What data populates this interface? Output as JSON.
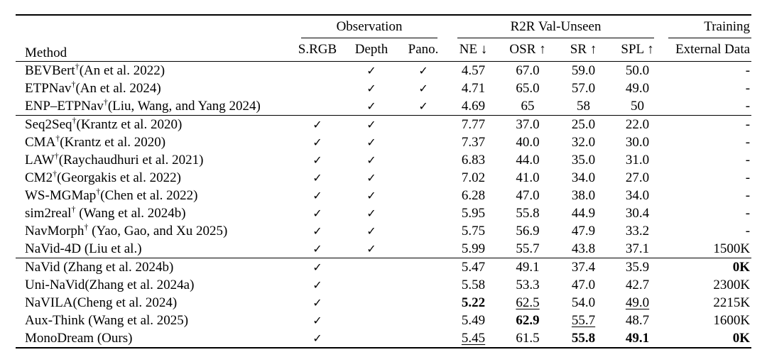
{
  "page": {
    "background": "#ffffff",
    "text_color": "#000000",
    "rule_color": "#000000"
  },
  "symbols": {
    "check": "✓",
    "dagger": "†"
  },
  "header": {
    "method": "Method",
    "groups": [
      {
        "label": "Observation",
        "span": 3
      },
      {
        "label": "R2R Val-Unseen",
        "span": 4
      },
      {
        "label": "Training",
        "span": 1
      }
    ],
    "sub": [
      "S.RGB",
      "Depth",
      "Pano.",
      "NE ↓",
      "OSR ↑",
      "SR ↑",
      "SPL ↑",
      "External Data"
    ]
  },
  "groups": [
    {
      "rows": [
        {
          "name": "BEVBert",
          "dagger": true,
          "cite": "(An et al. 2022)",
          "obs": [
            false,
            true,
            true
          ],
          "metrics": [
            {
              "t": "4.57"
            },
            {
              "t": "67.0"
            },
            {
              "t": "59.0"
            },
            {
              "t": "50.0"
            }
          ],
          "ext": {
            "t": "-"
          }
        },
        {
          "name": "ETPNav",
          "dagger": true,
          "cite": "(An et al. 2024)",
          "obs": [
            false,
            true,
            true
          ],
          "metrics": [
            {
              "t": "4.71"
            },
            {
              "t": "65.0"
            },
            {
              "t": "57.0"
            },
            {
              "t": "49.0"
            }
          ],
          "ext": {
            "t": "-"
          }
        },
        {
          "name": "ENP–ETPNav",
          "dagger": true,
          "cite": "(Liu, Wang, and Yang 2024)",
          "obs": [
            false,
            true,
            true
          ],
          "metrics": [
            {
              "t": "4.69"
            },
            {
              "t": "65"
            },
            {
              "t": "58"
            },
            {
              "t": "50"
            }
          ],
          "ext": {
            "t": "-"
          }
        }
      ]
    },
    {
      "rows": [
        {
          "name": "Seq2Seq",
          "dagger": true,
          "cite": "(Krantz et al. 2020)",
          "obs": [
            true,
            true,
            false
          ],
          "metrics": [
            {
              "t": "7.77"
            },
            {
              "t": "37.0"
            },
            {
              "t": "25.0"
            },
            {
              "t": "22.0"
            }
          ],
          "ext": {
            "t": "-"
          }
        },
        {
          "name": "CMA",
          "dagger": true,
          "cite": "(Krantz et al. 2020)",
          "obs": [
            true,
            true,
            false
          ],
          "metrics": [
            {
              "t": "7.37"
            },
            {
              "t": "40.0"
            },
            {
              "t": "32.0"
            },
            {
              "t": "30.0"
            }
          ],
          "ext": {
            "t": "-"
          }
        },
        {
          "name": "LAW",
          "dagger": true,
          "cite": "(Raychaudhuri et al. 2021)",
          "obs": [
            true,
            true,
            false
          ],
          "metrics": [
            {
              "t": "6.83"
            },
            {
              "t": "44.0"
            },
            {
              "t": "35.0"
            },
            {
              "t": "31.0"
            }
          ],
          "ext": {
            "t": "-"
          }
        },
        {
          "name": "CM2",
          "dagger": true,
          "cite": "(Georgakis et al. 2022)",
          "obs": [
            true,
            true,
            false
          ],
          "metrics": [
            {
              "t": "7.02"
            },
            {
              "t": "41.0"
            },
            {
              "t": "34.0"
            },
            {
              "t": "27.0"
            }
          ],
          "ext": {
            "t": "-"
          }
        },
        {
          "name": "WS-MGMap",
          "dagger": true,
          "cite": "(Chen et al. 2022)",
          "obs": [
            true,
            true,
            false
          ],
          "metrics": [
            {
              "t": "6.28"
            },
            {
              "t": "47.0"
            },
            {
              "t": "38.0"
            },
            {
              "t": "34.0"
            }
          ],
          "ext": {
            "t": "-"
          }
        },
        {
          "name": "sim2real",
          "dagger": true,
          "cite": " (Wang et al. 2024b)",
          "obs": [
            true,
            true,
            false
          ],
          "metrics": [
            {
              "t": "5.95"
            },
            {
              "t": "55.8"
            },
            {
              "t": "44.9"
            },
            {
              "t": "30.4"
            }
          ],
          "ext": {
            "t": "-"
          }
        },
        {
          "name": "NavMorph",
          "dagger": true,
          "cite": " (Yao, Gao, and Xu 2025)",
          "obs": [
            true,
            true,
            false
          ],
          "metrics": [
            {
              "t": "5.75"
            },
            {
              "t": "56.9"
            },
            {
              "t": "47.9"
            },
            {
              "t": "33.2"
            }
          ],
          "ext": {
            "t": "-"
          }
        },
        {
          "name": "NaVid-4D",
          "dagger": false,
          "cite": " (Liu et al.)",
          "obs": [
            true,
            true,
            false
          ],
          "metrics": [
            {
              "t": "5.99"
            },
            {
              "t": "55.7"
            },
            {
              "t": "43.8"
            },
            {
              "t": "37.1"
            }
          ],
          "ext": {
            "t": "1500K"
          }
        }
      ]
    },
    {
      "rows": [
        {
          "name": "NaVid",
          "dagger": false,
          "cite": " (Zhang et al. 2024b)",
          "obs": [
            true,
            false,
            false
          ],
          "metrics": [
            {
              "t": "5.47"
            },
            {
              "t": "49.1"
            },
            {
              "t": "37.4"
            },
            {
              "t": "35.9"
            }
          ],
          "ext": {
            "t": "0K",
            "s": "b"
          }
        },
        {
          "name": "Uni-NaVid",
          "dagger": false,
          "cite": "(Zhang et al. 2024a)",
          "obs": [
            true,
            false,
            false
          ],
          "metrics": [
            {
              "t": "5.58"
            },
            {
              "t": "53.3"
            },
            {
              "t": "47.0"
            },
            {
              "t": "42.7"
            }
          ],
          "ext": {
            "t": "2300K"
          }
        },
        {
          "name": "NaVILA",
          "dagger": false,
          "cite": "(Cheng et al. 2024)",
          "obs": [
            true,
            false,
            false
          ],
          "metrics": [
            {
              "t": "5.22",
              "s": "b"
            },
            {
              "t": "62.5",
              "s": "u"
            },
            {
              "t": "54.0"
            },
            {
              "t": "49.0",
              "s": "u"
            }
          ],
          "ext": {
            "t": "2215K"
          }
        },
        {
          "name": "Aux-Think",
          "dagger": false,
          "cite": " (Wang et al. 2025)",
          "obs": [
            true,
            false,
            false
          ],
          "metrics": [
            {
              "t": "5.49"
            },
            {
              "t": "62.9",
              "s": "b"
            },
            {
              "t": "55.7",
              "s": "u"
            },
            {
              "t": "48.7"
            }
          ],
          "ext": {
            "t": "1600K"
          }
        },
        {
          "name": "MonoDream",
          "dagger": false,
          "cite": " (Ours)",
          "obs": [
            true,
            false,
            false
          ],
          "metrics": [
            {
              "t": "5.45",
              "s": "u"
            },
            {
              "t": "61.5"
            },
            {
              "t": "55.8",
              "s": "b"
            },
            {
              "t": "49.1",
              "s": "b"
            }
          ],
          "ext": {
            "t": "0K",
            "s": "b"
          }
        }
      ]
    }
  ]
}
